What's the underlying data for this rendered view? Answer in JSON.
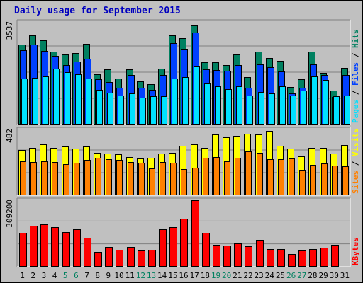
{
  "chart_data": {
    "type": "bar",
    "title": "Daily usage for September 2015",
    "days": [
      "1",
      "2",
      "3",
      "4",
      "5",
      "6",
      "7",
      "8",
      "9",
      "10",
      "11",
      "12",
      "13",
      "14",
      "15",
      "16",
      "17",
      "18",
      "19",
      "20",
      "21",
      "22",
      "23",
      "24",
      "25",
      "26",
      "27",
      "28",
      "29",
      "30",
      "31"
    ],
    "weekend_days": [
      "5",
      "6",
      "12",
      "13",
      "19",
      "20",
      "26",
      "27"
    ],
    "panels": [
      {
        "id": "hits-files-pages",
        "max_label": "3537",
        "ymax": 3537,
        "axis_labels": [
          {
            "text": "Pages",
            "color": "#00e0ff"
          },
          {
            "text": "Files",
            "color": "#0040ff"
          },
          {
            "text": "Hits",
            "color": "#008060"
          }
        ],
        "series": [
          {
            "name": "Hits",
            "color": "#008060",
            "values": [
              2730,
              3060,
              2890,
              2490,
              2390,
              2450,
              2760,
              1710,
              1900,
              1580,
              1900,
              1470,
              1390,
              1920,
              3060,
              2960,
              3400,
              2120,
              2120,
              2040,
              2390,
              1620,
              2490,
              2270,
              2180,
              1280,
              1540,
              2490,
              1780,
              1160,
              1930
            ]
          },
          {
            "name": "Files",
            "color": "#0040ff",
            "values": [
              2540,
              2730,
              2530,
              2360,
              2040,
              2150,
              2250,
              1540,
              1460,
              1270,
              1700,
              1270,
              1180,
              1700,
              2780,
              2590,
              3160,
              1880,
              1860,
              1830,
              2040,
              1270,
              2070,
              1960,
              1820,
              1060,
              1270,
              2070,
              1690,
              940,
              1700
            ]
          },
          {
            "name": "Pages",
            "color": "#00e0ff",
            "values": [
              1570,
              1590,
              1640,
              1920,
              1790,
              1730,
              1570,
              1190,
              1100,
              990,
              1060,
              920,
              960,
              970,
              1580,
              1630,
              2000,
              1410,
              1310,
              1210,
              1320,
              1000,
              1110,
              1060,
              1310,
              1000,
              1160,
              1650,
              1530,
              960,
              990
            ]
          }
        ]
      },
      {
        "id": "visits-sites",
        "max_label": "482",
        "ymax": 482,
        "axis_labels": [
          {
            "text": "Sites",
            "color": "#ff8000"
          },
          {
            "text": "Visits",
            "color": "#ffff00"
          }
        ],
        "series": [
          {
            "name": "Visits",
            "color": "#ffff00",
            "values": [
              330,
              345,
              370,
              345,
              355,
              340,
              352,
              308,
              300,
              298,
              278,
              268,
              272,
              305,
              310,
              357,
              370,
              342,
              440,
              420,
              432,
              448,
              440,
              465,
              358,
              338,
              282,
              345,
              342,
              305,
              365
            ]
          },
          {
            "name": "Sites",
            "color": "#ff8000",
            "values": [
              246,
              242,
              245,
              240,
              225,
              238,
              258,
              270,
              260,
              255,
              240,
              235,
              195,
              240,
              235,
              192,
              200,
              270,
              278,
              245,
              272,
              318,
              308,
              260,
              262,
              265,
              185,
              220,
              230,
              213,
              210
            ]
          }
        ]
      },
      {
        "id": "kbytes",
        "max_label": "309200",
        "ymax": 309200,
        "axis_labels": [
          {
            "text": "KBytes",
            "color": "#ff0000"
          }
        ],
        "series": [
          {
            "name": "KBytes",
            "color": "#ff0000",
            "values": [
              155000,
              190000,
              194000,
              181000,
              159000,
              172000,
              133000,
              67000,
              90000,
              79000,
              91000,
              76000,
              78000,
              173000,
              182000,
              220000,
              307000,
              156000,
              101000,
              98000,
              108000,
              96000,
              124000,
              81000,
              80000,
              57000,
              76000,
              80000,
              88000,
              101000,
              0
            ]
          }
        ]
      }
    ]
  }
}
